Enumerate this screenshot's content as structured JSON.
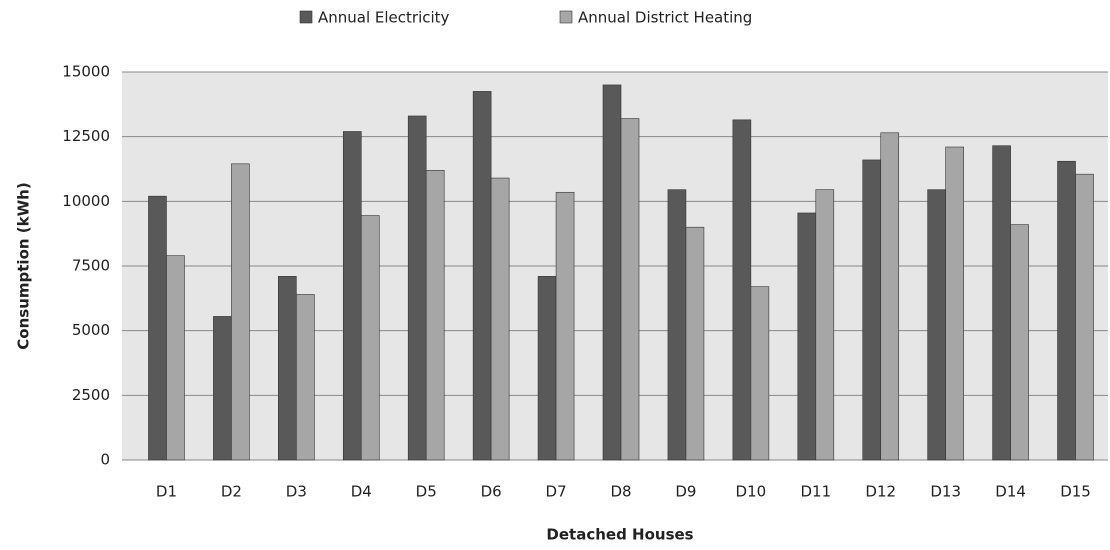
{
  "chart_data": {
    "type": "bar",
    "x_label": "Detached Houses",
    "y_label": "Consumption (kWh)",
    "categories": [
      "D1",
      "D2",
      "D3",
      "D4",
      "D5",
      "D6",
      "D7",
      "D8",
      "D9",
      "D10",
      "D11",
      "D12",
      "D13",
      "D14",
      "D15"
    ],
    "series": [
      {
        "name": "Annual Electricity",
        "color": "#595959",
        "values": [
          10200,
          5550,
          7100,
          12700,
          13300,
          14250,
          7100,
          14500,
          10450,
          13150,
          9550,
          11600,
          10450,
          12150,
          11550
        ]
      },
      {
        "name": "Annual District Heating",
        "color": "#a6a6a6",
        "values": [
          7900,
          11450,
          6400,
          9450,
          11200,
          10900,
          10350,
          13200,
          9000,
          6700,
          10450,
          12650,
          12100,
          9100,
          11050
        ]
      }
    ],
    "ylim": [
      0,
      15000
    ],
    "yticks": [
      0,
      2500,
      5000,
      7500,
      10000,
      12500,
      15000
    ],
    "grid": true,
    "legend": "top"
  }
}
